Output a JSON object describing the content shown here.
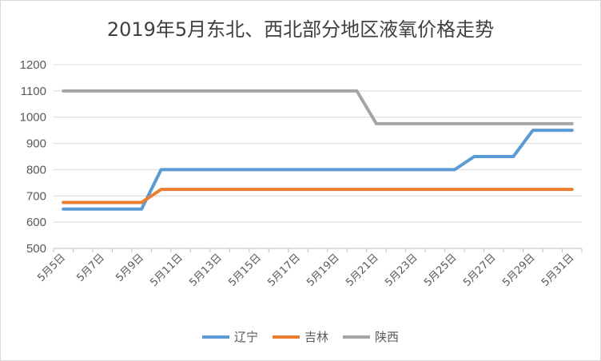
{
  "chart_data": {
    "type": "line",
    "title": "2019年5月东北、西北部分地区液氧价格走势",
    "xlabel": "",
    "ylabel": "",
    "ylim": [
      500,
      1200
    ],
    "yticks": [
      500,
      600,
      700,
      800,
      900,
      1000,
      1100,
      1200
    ],
    "grid": "horizontal",
    "legend_position": "bottom",
    "x": [
      "5月5日",
      "5月6日",
      "5月7日",
      "5月8日",
      "5月9日",
      "5月10日",
      "5月11日",
      "5月12日",
      "5月13日",
      "5月14日",
      "5月15日",
      "5月16日",
      "5月17日",
      "5月18日",
      "5月19日",
      "5月20日",
      "5月21日",
      "5月22日",
      "5月23日",
      "5月24日",
      "5月25日",
      "5月26日",
      "5月27日",
      "5月28日",
      "5月29日",
      "5月30日",
      "5月31日"
    ],
    "xtick_labels": [
      "5月5日",
      "5月7日",
      "5月9日",
      "5月11日",
      "5月13日",
      "5月15日",
      "5月17日",
      "5月19日",
      "5月21日",
      "5月23日",
      "5月25日",
      "5月27日",
      "5月29日",
      "5月31日"
    ],
    "series": [
      {
        "name": "辽宁",
        "color": "#5b9bd5",
        "values": [
          650,
          650,
          650,
          650,
          650,
          800,
          800,
          800,
          800,
          800,
          800,
          800,
          800,
          800,
          800,
          800,
          800,
          800,
          800,
          800,
          800,
          850,
          850,
          850,
          950,
          950,
          950
        ]
      },
      {
        "name": "吉林",
        "color": "#ed7d31",
        "values": [
          675,
          675,
          675,
          675,
          675,
          725,
          725,
          725,
          725,
          725,
          725,
          725,
          725,
          725,
          725,
          725,
          725,
          725,
          725,
          725,
          725,
          725,
          725,
          725,
          725,
          725,
          725
        ]
      },
      {
        "name": "陕西",
        "color": "#a5a5a5",
        "values": [
          1100,
          1100,
          1100,
          1100,
          1100,
          1100,
          1100,
          1100,
          1100,
          1100,
          1100,
          1100,
          1100,
          1100,
          1100,
          1100,
          975,
          975,
          975,
          975,
          975,
          975,
          975,
          975,
          975,
          975,
          975
        ]
      }
    ]
  }
}
